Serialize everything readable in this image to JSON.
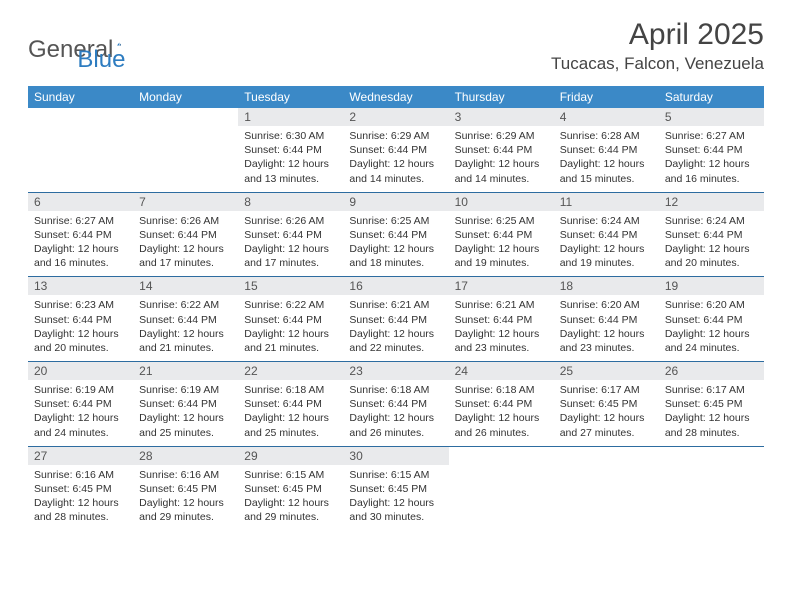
{
  "brand": {
    "part1": "General",
    "part2": "Blue"
  },
  "title": "April 2025",
  "location": "Tucacas, Falcon, Venezuela",
  "colors": {
    "header_bg": "#3b89c7",
    "daynum_bg": "#e9eaec",
    "row_border": "#2d6ca0",
    "text": "#333333",
    "title": "#444444"
  },
  "weekdays": [
    "Sunday",
    "Monday",
    "Tuesday",
    "Wednesday",
    "Thursday",
    "Friday",
    "Saturday"
  ],
  "weeks": [
    [
      null,
      null,
      {
        "n": "1",
        "sr": "Sunrise: 6:30 AM",
        "ss": "Sunset: 6:44 PM",
        "d1": "Daylight: 12 hours",
        "d2": "and 13 minutes."
      },
      {
        "n": "2",
        "sr": "Sunrise: 6:29 AM",
        "ss": "Sunset: 6:44 PM",
        "d1": "Daylight: 12 hours",
        "d2": "and 14 minutes."
      },
      {
        "n": "3",
        "sr": "Sunrise: 6:29 AM",
        "ss": "Sunset: 6:44 PM",
        "d1": "Daylight: 12 hours",
        "d2": "and 14 minutes."
      },
      {
        "n": "4",
        "sr": "Sunrise: 6:28 AM",
        "ss": "Sunset: 6:44 PM",
        "d1": "Daylight: 12 hours",
        "d2": "and 15 minutes."
      },
      {
        "n": "5",
        "sr": "Sunrise: 6:27 AM",
        "ss": "Sunset: 6:44 PM",
        "d1": "Daylight: 12 hours",
        "d2": "and 16 minutes."
      }
    ],
    [
      {
        "n": "6",
        "sr": "Sunrise: 6:27 AM",
        "ss": "Sunset: 6:44 PM",
        "d1": "Daylight: 12 hours",
        "d2": "and 16 minutes."
      },
      {
        "n": "7",
        "sr": "Sunrise: 6:26 AM",
        "ss": "Sunset: 6:44 PM",
        "d1": "Daylight: 12 hours",
        "d2": "and 17 minutes."
      },
      {
        "n": "8",
        "sr": "Sunrise: 6:26 AM",
        "ss": "Sunset: 6:44 PM",
        "d1": "Daylight: 12 hours",
        "d2": "and 17 minutes."
      },
      {
        "n": "9",
        "sr": "Sunrise: 6:25 AM",
        "ss": "Sunset: 6:44 PM",
        "d1": "Daylight: 12 hours",
        "d2": "and 18 minutes."
      },
      {
        "n": "10",
        "sr": "Sunrise: 6:25 AM",
        "ss": "Sunset: 6:44 PM",
        "d1": "Daylight: 12 hours",
        "d2": "and 19 minutes."
      },
      {
        "n": "11",
        "sr": "Sunrise: 6:24 AM",
        "ss": "Sunset: 6:44 PM",
        "d1": "Daylight: 12 hours",
        "d2": "and 19 minutes."
      },
      {
        "n": "12",
        "sr": "Sunrise: 6:24 AM",
        "ss": "Sunset: 6:44 PM",
        "d1": "Daylight: 12 hours",
        "d2": "and 20 minutes."
      }
    ],
    [
      {
        "n": "13",
        "sr": "Sunrise: 6:23 AM",
        "ss": "Sunset: 6:44 PM",
        "d1": "Daylight: 12 hours",
        "d2": "and 20 minutes."
      },
      {
        "n": "14",
        "sr": "Sunrise: 6:22 AM",
        "ss": "Sunset: 6:44 PM",
        "d1": "Daylight: 12 hours",
        "d2": "and 21 minutes."
      },
      {
        "n": "15",
        "sr": "Sunrise: 6:22 AM",
        "ss": "Sunset: 6:44 PM",
        "d1": "Daylight: 12 hours",
        "d2": "and 21 minutes."
      },
      {
        "n": "16",
        "sr": "Sunrise: 6:21 AM",
        "ss": "Sunset: 6:44 PM",
        "d1": "Daylight: 12 hours",
        "d2": "and 22 minutes."
      },
      {
        "n": "17",
        "sr": "Sunrise: 6:21 AM",
        "ss": "Sunset: 6:44 PM",
        "d1": "Daylight: 12 hours",
        "d2": "and 23 minutes."
      },
      {
        "n": "18",
        "sr": "Sunrise: 6:20 AM",
        "ss": "Sunset: 6:44 PM",
        "d1": "Daylight: 12 hours",
        "d2": "and 23 minutes."
      },
      {
        "n": "19",
        "sr": "Sunrise: 6:20 AM",
        "ss": "Sunset: 6:44 PM",
        "d1": "Daylight: 12 hours",
        "d2": "and 24 minutes."
      }
    ],
    [
      {
        "n": "20",
        "sr": "Sunrise: 6:19 AM",
        "ss": "Sunset: 6:44 PM",
        "d1": "Daylight: 12 hours",
        "d2": "and 24 minutes."
      },
      {
        "n": "21",
        "sr": "Sunrise: 6:19 AM",
        "ss": "Sunset: 6:44 PM",
        "d1": "Daylight: 12 hours",
        "d2": "and 25 minutes."
      },
      {
        "n": "22",
        "sr": "Sunrise: 6:18 AM",
        "ss": "Sunset: 6:44 PM",
        "d1": "Daylight: 12 hours",
        "d2": "and 25 minutes."
      },
      {
        "n": "23",
        "sr": "Sunrise: 6:18 AM",
        "ss": "Sunset: 6:44 PM",
        "d1": "Daylight: 12 hours",
        "d2": "and 26 minutes."
      },
      {
        "n": "24",
        "sr": "Sunrise: 6:18 AM",
        "ss": "Sunset: 6:44 PM",
        "d1": "Daylight: 12 hours",
        "d2": "and 26 minutes."
      },
      {
        "n": "25",
        "sr": "Sunrise: 6:17 AM",
        "ss": "Sunset: 6:45 PM",
        "d1": "Daylight: 12 hours",
        "d2": "and 27 minutes."
      },
      {
        "n": "26",
        "sr": "Sunrise: 6:17 AM",
        "ss": "Sunset: 6:45 PM",
        "d1": "Daylight: 12 hours",
        "d2": "and 28 minutes."
      }
    ],
    [
      {
        "n": "27",
        "sr": "Sunrise: 6:16 AM",
        "ss": "Sunset: 6:45 PM",
        "d1": "Daylight: 12 hours",
        "d2": "and 28 minutes."
      },
      {
        "n": "28",
        "sr": "Sunrise: 6:16 AM",
        "ss": "Sunset: 6:45 PM",
        "d1": "Daylight: 12 hours",
        "d2": "and 29 minutes."
      },
      {
        "n": "29",
        "sr": "Sunrise: 6:15 AM",
        "ss": "Sunset: 6:45 PM",
        "d1": "Daylight: 12 hours",
        "d2": "and 29 minutes."
      },
      {
        "n": "30",
        "sr": "Sunrise: 6:15 AM",
        "ss": "Sunset: 6:45 PM",
        "d1": "Daylight: 12 hours",
        "d2": "and 30 minutes."
      },
      null,
      null,
      null
    ]
  ]
}
